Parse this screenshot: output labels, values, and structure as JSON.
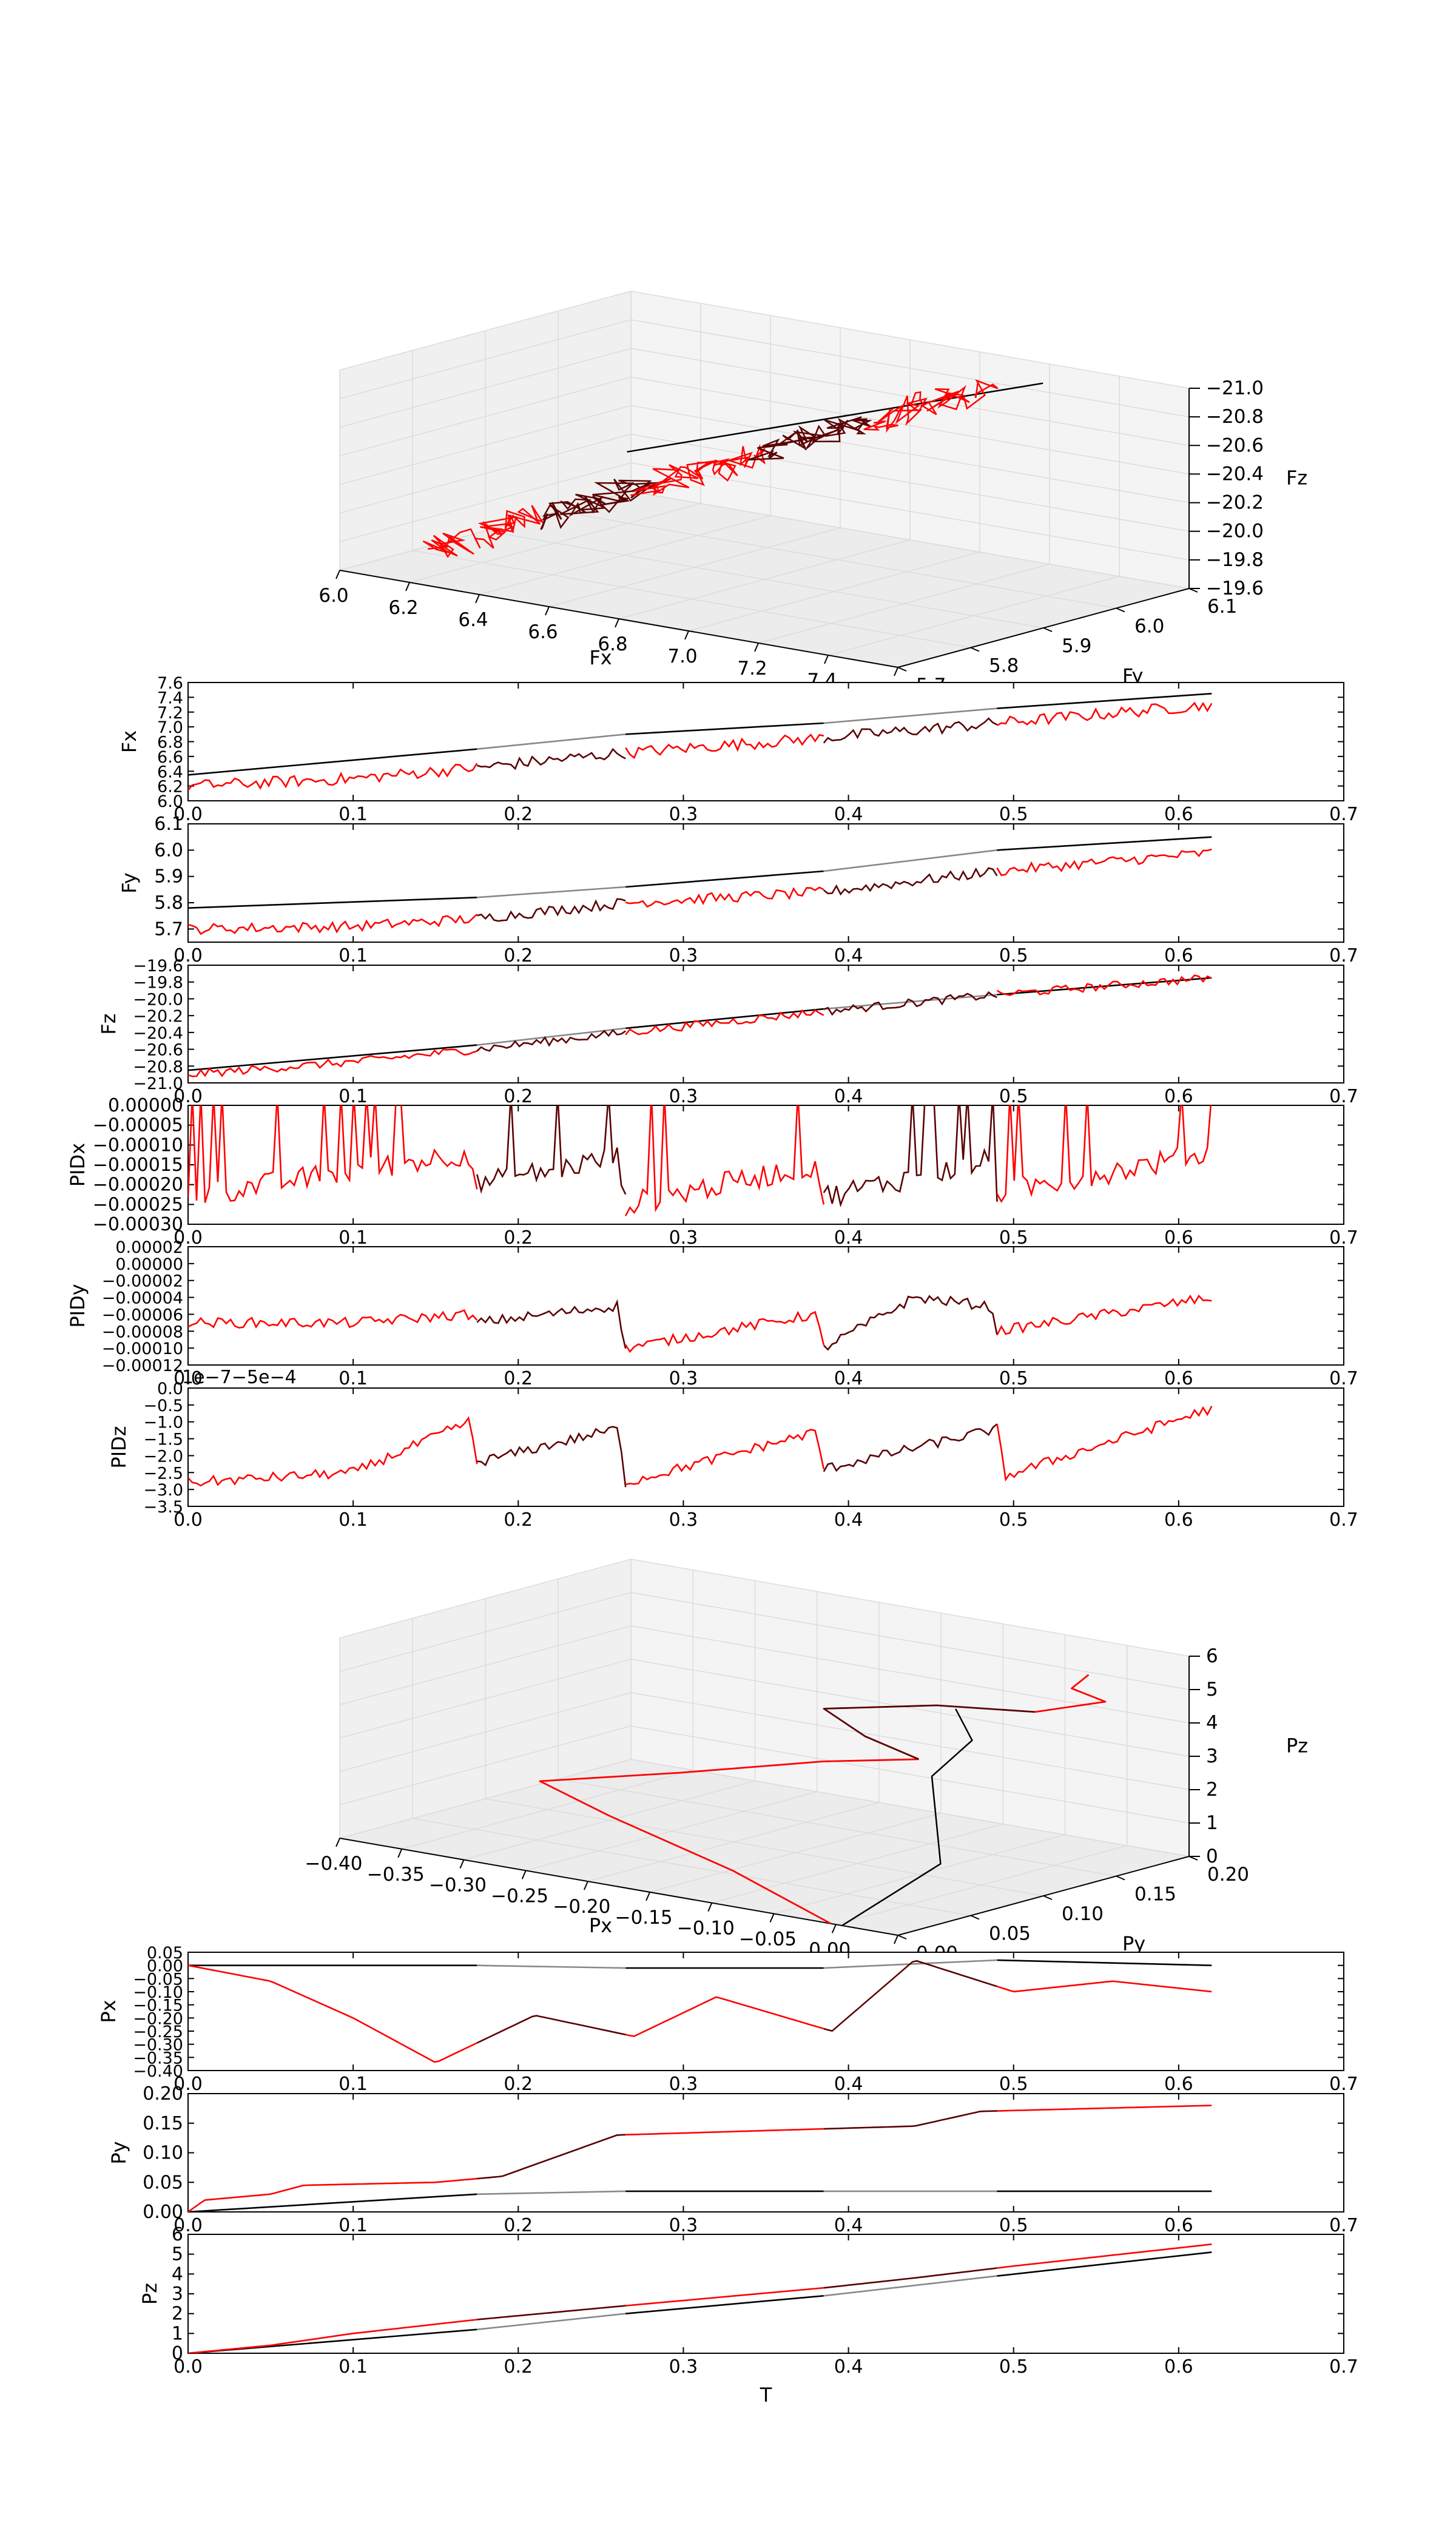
{
  "colors": {
    "measured": "#ff0000",
    "measured_alt": "#5a0000",
    "reference": "#000000",
    "reference_alt": "#888888",
    "pane": "#f2f2f2",
    "grid": "#dcdcdc"
  },
  "chart_data": [
    {
      "id": "force3d",
      "type": "line",
      "projection": "3d",
      "xlabel": "Fx",
      "ylabel": "Fy",
      "zlabel": "Fz",
      "xlim": [
        6.0,
        7.6
      ],
      "ylim": [
        5.65,
        6.1
      ],
      "zlim": [
        -21.0,
        -19.6
      ],
      "xticks": [
        "6.0",
        "6.2",
        "6.4",
        "6.6",
        "6.8",
        "7.0",
        "7.2",
        "7.4",
        "7.6"
      ],
      "yticks": [
        "5.7",
        "5.8",
        "5.9",
        "6.0",
        "6.1"
      ],
      "zticks": [
        "−19.6",
        "−19.8",
        "−20.0",
        "−20.2",
        "−20.4",
        "−20.6",
        "−20.8",
        "−21.0"
      ]
    },
    {
      "id": "Fx",
      "type": "line",
      "xlabel": "",
      "ylabel": "Fx",
      "xlim": [
        0,
        0.7
      ],
      "ylim": [
        6.0,
        7.6
      ],
      "xticks": [
        "0.0",
        "0.1",
        "0.2",
        "0.3",
        "0.4",
        "0.5",
        "0.6",
        "0.7"
      ],
      "yticks": [
        "6.0",
        "6.2",
        "6.4",
        "6.6",
        "6.8",
        "7.0",
        "7.2",
        "7.4",
        "7.6"
      ],
      "series": [
        {
          "role": "reference",
          "x": [
            0,
            0.175,
            0.265,
            0.385,
            0.49,
            0.62
          ],
          "values": [
            6.35,
            6.7,
            6.9,
            7.05,
            7.25,
            7.45
          ]
        },
        {
          "role": "measured",
          "x": [
            0,
            0.1,
            0.175,
            0.265,
            0.385,
            0.49,
            0.62
          ],
          "values": [
            6.2,
            6.3,
            6.45,
            6.65,
            6.85,
            7.05,
            7.3
          ],
          "noise": 0.08
        }
      ]
    },
    {
      "id": "Fy",
      "type": "line",
      "xlabel": "",
      "ylabel": "Fy",
      "xlim": [
        0,
        0.7
      ],
      "ylim": [
        5.65,
        6.1
      ],
      "xticks": [
        "0.0",
        "0.1",
        "0.2",
        "0.3",
        "0.4",
        "0.5",
        "0.6",
        "0.7"
      ],
      "yticks": [
        "5.7",
        "5.8",
        "5.9",
        "6.0",
        "6.1"
      ],
      "series": [
        {
          "role": "reference",
          "x": [
            0,
            0.175,
            0.265,
            0.385,
            0.49,
            0.62
          ],
          "values": [
            5.78,
            5.82,
            5.86,
            5.92,
            6.0,
            6.05
          ]
        },
        {
          "role": "measured",
          "x": [
            0,
            0.1,
            0.175,
            0.265,
            0.385,
            0.49,
            0.62
          ],
          "values": [
            5.7,
            5.71,
            5.74,
            5.8,
            5.84,
            5.92,
            5.99
          ],
          "noise": 0.02
        }
      ]
    },
    {
      "id": "Fz",
      "type": "line",
      "xlabel": "",
      "ylabel": "Fz",
      "xlim": [
        0,
        0.7
      ],
      "ylim": [
        -21.0,
        -19.6
      ],
      "xticks": [
        "0.0",
        "0.1",
        "0.2",
        "0.3",
        "0.4",
        "0.5",
        "0.6",
        "0.7"
      ],
      "yticks": [
        "−19.6",
        "−19.8",
        "−20.0",
        "−20.2",
        "−20.4",
        "−20.6",
        "−20.8",
        "−21.0"
      ],
      "series": [
        {
          "role": "reference",
          "x": [
            0,
            0.175,
            0.265,
            0.385,
            0.49,
            0.62
          ],
          "values": [
            -20.85,
            -20.55,
            -20.35,
            -20.12,
            -19.95,
            -19.75
          ]
        },
        {
          "role": "measured",
          "x": [
            0,
            0.1,
            0.175,
            0.265,
            0.385,
            0.49,
            0.62
          ],
          "values": [
            -20.9,
            -20.75,
            -20.6,
            -20.4,
            -20.15,
            -19.95,
            -19.75
          ],
          "noise": 0.05
        }
      ]
    },
    {
      "id": "PIDx",
      "type": "line",
      "xlabel": "",
      "ylabel": "PIDx",
      "xlim": [
        0,
        0.7
      ],
      "ylim": [
        -0.0003,
        0.0
      ],
      "xticks": [
        "0.0",
        "0.1",
        "0.2",
        "0.3",
        "0.4",
        "0.5",
        "0.6",
        "0.7"
      ],
      "yticks": [
        "0.00000",
        "−0.00005",
        "−0.00010",
        "−0.00015",
        "−0.00020",
        "−0.00025",
        "−0.00030"
      ],
      "series": [
        {
          "role": "measured",
          "x": [
            0,
            0.17,
            0.175,
            0.26,
            0.265,
            0.38,
            0.385,
            0.485,
            0.49,
            0.62
          ],
          "values": [
            -0.00023,
            -0.00012,
            -0.0002,
            -0.00013,
            -0.00025,
            -0.00015,
            -0.00023,
            -0.00014,
            -0.00022,
            -0.00012
          ],
          "noise": 3e-05,
          "spikes": true
        }
      ]
    },
    {
      "id": "PIDy",
      "type": "line",
      "xlabel": "",
      "ylabel": "PIDy",
      "xlim": [
        0,
        0.7
      ],
      "ylim": [
        -0.00012,
        2e-05
      ],
      "xticks": [
        "0.0",
        "0.1",
        "0.2",
        "0.3",
        "0.4",
        "0.5",
        "0.6",
        "0.7"
      ],
      "yticks": [
        "0.00002",
        "0.00000",
        "−0.00002",
        "−0.00004",
        "−0.00006",
        "−0.00008",
        "−0.00010",
        "−0.00012"
      ],
      "series": [
        {
          "role": "measured",
          "x": [
            0,
            0.1,
            0.17,
            0.175,
            0.26,
            0.265,
            0.38,
            0.385,
            0.44,
            0.485,
            0.49,
            0.62
          ],
          "values": [
            -7e-05,
            -7e-05,
            -6e-05,
            -7e-05,
            -5e-05,
            -0.0001,
            -6e-05,
            -0.0001,
            -4e-05,
            -5e-05,
            -8e-05,
            -4e-05
          ],
          "noise": 6e-06
        }
      ]
    },
    {
      "id": "PIDz",
      "type": "line",
      "xlabel": "",
      "ylabel": "PIDz",
      "offset_text": "1e−7−5e−4",
      "xlim": [
        0,
        0.7
      ],
      "ylim": [
        -3.5,
        0.0
      ],
      "xticks": [
        "0.0",
        "0.1",
        "0.2",
        "0.3",
        "0.4",
        "0.5",
        "0.6",
        "0.7"
      ],
      "yticks": [
        "0.0",
        "−0.5",
        "−1.0",
        "−1.5",
        "−2.0",
        "−2.5",
        "−3.0",
        "−3.5"
      ],
      "series": [
        {
          "role": "measured",
          "x": [
            0,
            0.1,
            0.17,
            0.175,
            0.26,
            0.265,
            0.38,
            0.385,
            0.49,
            0.495,
            0.62
          ],
          "values": [
            -2.8,
            -2.5,
            -1.0,
            -2.2,
            -1.2,
            -2.8,
            -1.3,
            -2.4,
            -1.2,
            -2.6,
            -0.6
          ],
          "noise": 0.15
        }
      ]
    },
    {
      "id": "position3d",
      "type": "line",
      "projection": "3d",
      "xlabel": "Px",
      "ylabel": "Py",
      "zlabel": "Pz",
      "xlim": [
        -0.4,
        0.05
      ],
      "ylim": [
        0.0,
        0.2
      ],
      "zlim": [
        0,
        6
      ],
      "xticks": [
        "−0.40",
        "−0.35",
        "−0.30",
        "−0.25",
        "−0.20",
        "−0.15",
        "−0.10",
        "−0.05",
        "0.00",
        "0.05"
      ],
      "yticks": [
        "0.00",
        "0.05",
        "0.10",
        "0.15",
        "0.20"
      ],
      "zticks": [
        "0",
        "1",
        "2",
        "3",
        "4",
        "5",
        "6"
      ]
    },
    {
      "id": "Px",
      "type": "line",
      "xlabel": "",
      "ylabel": "Px",
      "xlim": [
        0,
        0.7
      ],
      "ylim": [
        -0.4,
        0.05
      ],
      "xticks": [
        "0.0",
        "0.1",
        "0.2",
        "0.3",
        "0.4",
        "0.5",
        "0.6",
        "0.7"
      ],
      "yticks": [
        "0.05",
        "0.00",
        "−0.05",
        "−0.10",
        "−0.15",
        "−0.20",
        "−0.25",
        "−0.30",
        "−0.35",
        "−0.40"
      ],
      "series": [
        {
          "role": "reference",
          "x": [
            0,
            0.175,
            0.265,
            0.385,
            0.49,
            0.62
          ],
          "values": [
            0.0,
            0.0,
            -0.01,
            -0.01,
            0.02,
            0.0
          ]
        },
        {
          "role": "measured",
          "x": [
            0,
            0.05,
            0.1,
            0.15,
            0.21,
            0.27,
            0.32,
            0.39,
            0.44,
            0.5,
            0.56,
            0.62
          ],
          "values": [
            0.0,
            -0.06,
            -0.2,
            -0.37,
            -0.19,
            -0.27,
            -0.12,
            -0.25,
            0.02,
            -0.1,
            -0.06,
            -0.1
          ]
        }
      ]
    },
    {
      "id": "Py",
      "type": "line",
      "xlabel": "",
      "ylabel": "Py",
      "xlim": [
        0,
        0.7
      ],
      "ylim": [
        0.0,
        0.2
      ],
      "xticks": [
        "0.0",
        "0.1",
        "0.2",
        "0.3",
        "0.4",
        "0.5",
        "0.6",
        "0.7"
      ],
      "yticks": [
        "0.00",
        "0.05",
        "0.10",
        "0.15",
        "0.20"
      ],
      "series": [
        {
          "role": "reference",
          "x": [
            0,
            0.175,
            0.265,
            0.62
          ],
          "values": [
            0.0,
            0.03,
            0.035,
            0.035
          ]
        },
        {
          "role": "measured",
          "x": [
            0,
            0.01,
            0.05,
            0.07,
            0.15,
            0.19,
            0.22,
            0.26,
            0.38,
            0.44,
            0.48,
            0.62
          ],
          "values": [
            0.0,
            0.02,
            0.03,
            0.045,
            0.05,
            0.06,
            0.09,
            0.13,
            0.14,
            0.145,
            0.17,
            0.18
          ]
        }
      ]
    },
    {
      "id": "Pz",
      "type": "line",
      "xlabel": "T",
      "ylabel": "Pz",
      "xlim": [
        0,
        0.7
      ],
      "ylim": [
        0,
        6
      ],
      "xticks": [
        "0.0",
        "0.1",
        "0.2",
        "0.3",
        "0.4",
        "0.5",
        "0.6",
        "0.7"
      ],
      "yticks": [
        "0",
        "1",
        "2",
        "3",
        "4",
        "5",
        "6"
      ],
      "series": [
        {
          "role": "reference",
          "x": [
            0,
            0.175,
            0.265,
            0.385,
            0.49,
            0.62
          ],
          "values": [
            0.0,
            1.2,
            2.0,
            2.9,
            3.9,
            5.1
          ]
        },
        {
          "role": "measured",
          "x": [
            0,
            0.05,
            0.1,
            0.175,
            0.265,
            0.385,
            0.44,
            0.5,
            0.62
          ],
          "values": [
            0.0,
            0.4,
            1.0,
            1.7,
            2.4,
            3.3,
            3.8,
            4.4,
            5.5
          ]
        }
      ]
    }
  ]
}
